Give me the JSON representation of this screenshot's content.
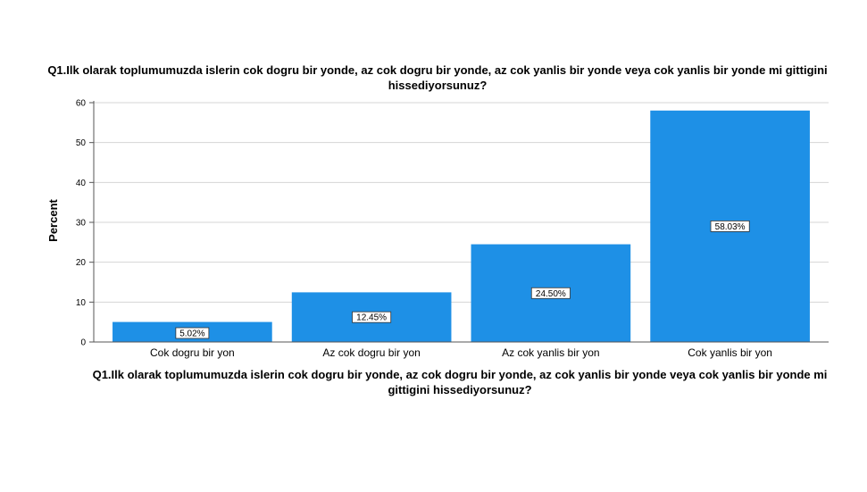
{
  "chart_data": {
    "type": "bar",
    "title": "Q1.Ilk olarak toplumumuzda islerin cok dogru bir yonde, az cok dogru bir yonde, az cok yanlis bir yonde veya cok yanlis bir yonde mi gittigini hissediyorsunuz?",
    "xlabel": "Q1.Ilk olarak toplumumuzda islerin cok dogru bir yonde, az cok dogru bir yonde, az cok yanlis bir yonde veya cok yanlis bir yonde mi gittigini hissediyorsunuz?",
    "ylabel": "Percent",
    "categories": [
      "Cok dogru bir yon",
      "Az cok dogru bir yon",
      "Az cok yanlis bir yon",
      "Cok yanlis bir yon"
    ],
    "values": [
      5.02,
      12.45,
      24.5,
      58.03
    ],
    "data_labels": [
      "5.02%",
      "12.45%",
      "24.50%",
      "58.03%"
    ],
    "ylim": [
      0,
      60
    ],
    "yticks": [
      0,
      10,
      20,
      30,
      40,
      50,
      60
    ],
    "grid": true,
    "bar_color": "#1e90e6"
  }
}
